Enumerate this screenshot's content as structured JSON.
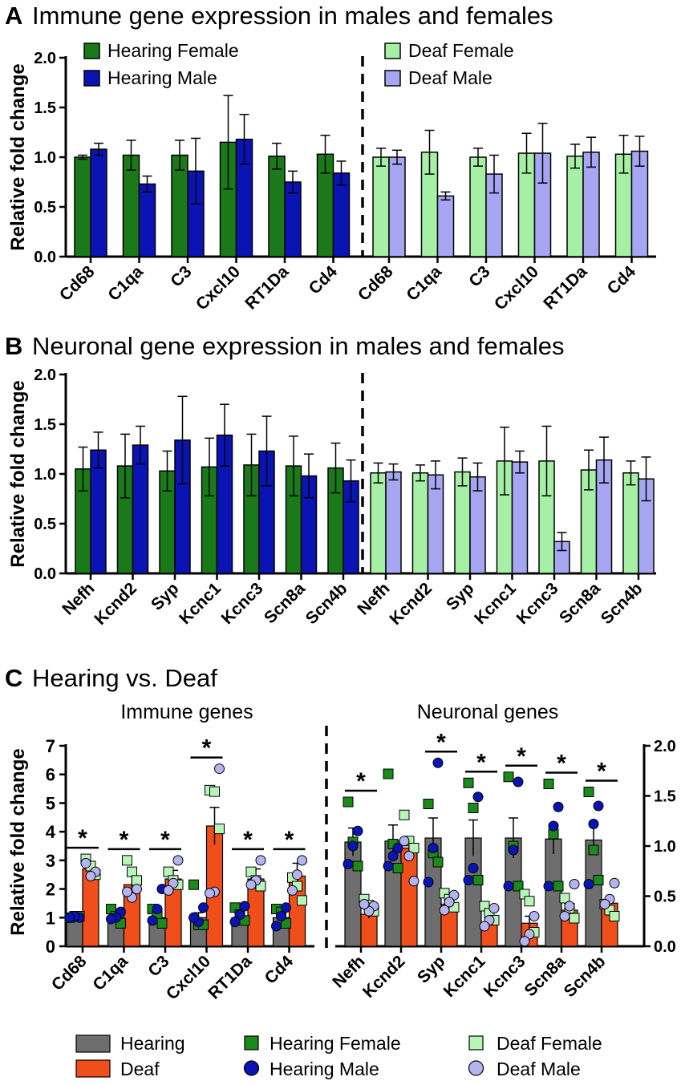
{
  "colors": {
    "hearing_female": "#1a7a1a",
    "hearing_male": "#0a14b4",
    "deaf_female": "#a6f0a6",
    "deaf_male": "#a6a6f2",
    "hearing": "#6e6e6e",
    "deaf": "#f04e1a",
    "dot_hearing_female": "#1a8a1a",
    "dot_hearing_male": "#0a14b4",
    "dot_deaf_female": "#b8f5b8",
    "dot_deaf_male": "#b4b4f0"
  },
  "chart_data": [
    {
      "panel": "A",
      "type": "bar",
      "title": "Immune gene expression in males and females",
      "ylabel": "Relative fold change",
      "ylim": [
        0,
        2.0
      ],
      "yticks": [
        "0.0",
        "0.5",
        "1.0",
        "1.5",
        "2.0"
      ],
      "legend": [
        "Hearing Female",
        "Hearing Male",
        "Deaf Female",
        "Deaf Male"
      ],
      "groups": [
        {
          "name": "Hearing",
          "categories": [
            "Cd68",
            "C1qa",
            "C3",
            "Cxcl10",
            "RT1Da",
            "Cd4"
          ],
          "series": [
            {
              "name": "Hearing Female",
              "values": [
                1.0,
                1.02,
                1.02,
                1.15,
                1.01,
                1.03
              ],
              "errors": [
                0.02,
                0.15,
                0.15,
                0.47,
                0.13,
                0.19
              ]
            },
            {
              "name": "Hearing Male",
              "values": [
                1.08,
                0.73,
                0.86,
                1.18,
                0.75,
                0.84
              ],
              "errors": [
                0.06,
                0.08,
                0.33,
                0.25,
                0.11,
                0.12
              ]
            }
          ]
        },
        {
          "name": "Deaf",
          "categories": [
            "Cd68",
            "C1qa",
            "C3",
            "Cxcl10",
            "RT1Da",
            "Cd4"
          ],
          "series": [
            {
              "name": "Deaf Female",
              "values": [
                1.0,
                1.05,
                1.0,
                1.04,
                1.01,
                1.03
              ],
              "errors": [
                0.09,
                0.22,
                0.09,
                0.2,
                0.12,
                0.19
              ]
            },
            {
              "name": "Deaf Male",
              "values": [
                1.0,
                0.61,
                0.83,
                1.04,
                1.05,
                1.06
              ],
              "errors": [
                0.07,
                0.04,
                0.19,
                0.3,
                0.15,
                0.15
              ]
            }
          ]
        }
      ]
    },
    {
      "panel": "B",
      "type": "bar",
      "title": "Neuronal gene expression in males and females",
      "ylabel": "Relative fold change",
      "ylim": [
        0,
        2.0
      ],
      "yticks": [
        "0.0",
        "0.5",
        "1.0",
        "1.5",
        "2.0"
      ],
      "groups": [
        {
          "name": "Hearing",
          "categories": [
            "Nefh",
            "Kcnd2",
            "Syp",
            "Kcnc1",
            "Kcnc3",
            "Scn8a",
            "Scn4b"
          ],
          "series": [
            {
              "name": "Hearing Female",
              "values": [
                1.05,
                1.08,
                1.03,
                1.07,
                1.09,
                1.08,
                1.06
              ],
              "errors": [
                0.22,
                0.32,
                0.2,
                0.29,
                0.31,
                0.3,
                0.25
              ]
            },
            {
              "name": "Hearing Male",
              "values": [
                1.24,
                1.29,
                1.34,
                1.39,
                1.23,
                0.98,
                0.93
              ],
              "errors": [
                0.18,
                0.19,
                0.44,
                0.31,
                0.35,
                0.22,
                0.21
              ]
            }
          ]
        },
        {
          "name": "Deaf",
          "categories": [
            "Nefh",
            "Kcnd2",
            "Syp",
            "Kcnc1",
            "Kcnc3",
            "Scn8a",
            "Scn4b"
          ],
          "series": [
            {
              "name": "Deaf Female",
              "values": [
                1.01,
                1.01,
                1.02,
                1.13,
                1.13,
                1.04,
                1.01
              ],
              "errors": [
                0.1,
                0.08,
                0.14,
                0.34,
                0.35,
                0.2,
                0.12
              ]
            },
            {
              "name": "Deaf Male",
              "values": [
                1.02,
                0.99,
                0.97,
                1.12,
                0.32,
                1.14,
                0.95
              ],
              "errors": [
                0.08,
                0.14,
                0.14,
                0.11,
                0.09,
                0.23,
                0.22
              ]
            }
          ]
        }
      ]
    },
    {
      "panel": "C",
      "type": "bar",
      "title": "Hearing vs. Deaf",
      "ylabel": "Relative fold change",
      "legend": [
        "Hearing",
        "Deaf",
        "Hearing Female",
        "Hearing Male",
        "Deaf Female",
        "Deaf Male"
      ],
      "subpanels": [
        {
          "title": "Immune genes",
          "axis": "left",
          "ylim": [
            0,
            7
          ],
          "yticks": [
            "0",
            "1",
            "2",
            "3",
            "4",
            "5",
            "6",
            "7"
          ],
          "categories": [
            "Cd68",
            "C1qa",
            "C3",
            "Cxcl10",
            "RT1Da",
            "Cd4"
          ],
          "significance": [
            "*",
            "*",
            "*",
            "*",
            "*",
            "*"
          ],
          "series": [
            {
              "name": "Hearing",
              "values": [
                1.0,
                1.0,
                1.0,
                1.0,
                1.0,
                1.0
              ],
              "errors": [
                0.04,
                0.1,
                0.12,
                0.17,
                0.12,
                0.12
              ]
            },
            {
              "name": "Deaf",
              "values": [
                2.7,
                2.15,
                2.35,
                4.2,
                2.35,
                2.45
              ],
              "errors": [
                0.22,
                0.35,
                0.3,
                0.65,
                0.35,
                0.45
              ]
            }
          ],
          "points": [
            {
              "h_female": [
                1.0,
                1.05,
                1.05
              ],
              "h_male": [
                1.0,
                1.05,
                1.0
              ],
              "d_female": [
                3.05,
                2.8,
                2.5
              ],
              "d_male": [
                2.6,
                2.45,
                2.9
              ]
            },
            {
              "h_female": [
                1.3,
                1.05,
                0.8
              ],
              "h_male": [
                1.2,
                1.0,
                0.95
              ],
              "d_female": [
                3.0,
                2.6,
                2.3
              ],
              "d_male": [
                2.0,
                1.7,
                1.9
              ]
            },
            {
              "h_female": [
                1.3,
                1.1,
                0.8
              ],
              "h_male": [
                2.0,
                1.3,
                0.9
              ],
              "d_female": [
                2.6,
                2.3,
                2.15
              ],
              "d_male": [
                3.0,
                2.2,
                1.95
              ]
            },
            {
              "h_female": [
                2.15,
                0.75,
                0.75
              ],
              "h_male": [
                1.35,
                0.85,
                1.0
              ],
              "d_female": [
                5.45,
                5.4,
                4.1
              ],
              "d_male": [
                6.2,
                1.9,
                1.85
              ]
            },
            {
              "h_female": [
                1.35,
                1.1,
                0.9
              ],
              "h_male": [
                1.4,
                1.1,
                0.85
              ],
              "d_female": [
                2.6,
                2.3,
                2.1
              ],
              "d_male": [
                3.0,
                2.3,
                2.15
              ]
            },
            {
              "h_female": [
                1.3,
                1.2,
                0.8
              ],
              "h_male": [
                1.35,
                1.05,
                0.7
              ],
              "d_female": [
                2.4,
                2.1,
                1.6
              ],
              "d_male": [
                3.0,
                2.5,
                1.95
              ]
            }
          ]
        },
        {
          "title": "Neuronal genes",
          "axis": "right",
          "ylim": [
            0,
            2.0
          ],
          "yticks": [
            "0.0",
            "0.5",
            "1.0",
            "1.5",
            "2.0"
          ],
          "categories": [
            "Nefh",
            "Kcnd2",
            "Syp",
            "Kcnc1",
            "Kcnc3",
            "Scn8a",
            "Scn4b"
          ],
          "significance": [
            "*",
            "",
            "*",
            "*",
            "*",
            "*",
            "*"
          ],
          "series": [
            {
              "name": "Hearing",
              "values": [
                1.04,
                1.05,
                1.08,
                1.08,
                1.08,
                1.07,
                1.06
              ],
              "errors": [
                0.14,
                0.16,
                0.2,
                0.18,
                0.2,
                0.15,
                0.14
              ]
            },
            {
              "name": "Deaf",
              "values": [
                0.32,
                0.98,
                0.42,
                0.24,
                0.23,
                0.36,
                0.43
              ],
              "errors": [
                0.04,
                0.05,
                0.06,
                0.05,
                0.07,
                0.04,
                0.05
              ]
            }
          ],
          "points": [
            {
              "h_female": [
                1.44,
                1.04,
                0.8
              ],
              "h_male": [
                1.15,
                1.0,
                0.82
              ],
              "d_female": [
                0.47,
                0.41,
                0.35
              ],
              "d_male": [
                0.4,
                0.35,
                0.42
              ]
            },
            {
              "h_female": [
                1.72,
                1.02,
                0.78
              ],
              "h_male": [
                0.98,
                0.9,
                0.8
              ],
              "d_female": [
                1.31,
                1.05,
                0.98
              ],
              "d_male": [
                0.65,
                0.9,
                1.05
              ]
            },
            {
              "h_female": [
                1.42,
                0.93,
                0.84
              ],
              "h_male": [
                1.83,
                0.98,
                0.64
              ],
              "d_female": [
                0.53,
                0.47,
                0.39
              ],
              "d_male": [
                0.51,
                0.44,
                0.36
              ]
            },
            {
              "h_female": [
                1.63,
                1.38,
                0.66
              ],
              "h_male": [
                1.49,
                0.78,
                0.66
              ],
              "d_female": [
                0.4,
                0.33,
                0.26
              ],
              "d_male": [
                0.38,
                0.26,
                0.2
              ]
            },
            {
              "h_female": [
                1.69,
                1.0,
                0.6
              ],
              "h_male": [
                1.64,
                0.96,
                0.6
              ],
              "d_female": [
                0.52,
                0.45,
                0.14
              ],
              "d_male": [
                0.3,
                0.12,
                0.05
              ]
            },
            {
              "h_female": [
                1.62,
                1.12,
                0.6
              ],
              "h_male": [
                1.39,
                1.2,
                0.6
              ],
              "d_female": [
                0.48,
                0.38,
                0.28
              ],
              "d_male": [
                0.62,
                0.4,
                0.3
              ]
            },
            {
              "h_female": [
                1.54,
                0.96,
                0.66
              ],
              "h_male": [
                1.4,
                1.22,
                0.62
              ],
              "d_female": [
                0.42,
                0.36,
                0.3
              ],
              "d_male": [
                0.63,
                0.47,
                0.42
              ]
            }
          ]
        }
      ]
    }
  ]
}
